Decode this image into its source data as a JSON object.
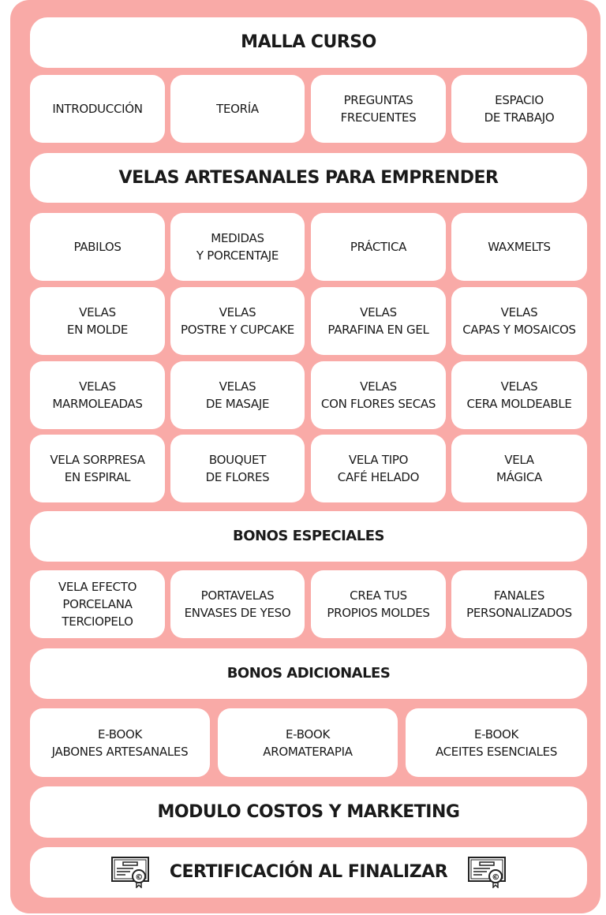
{
  "title": "MALLA CURSO",
  "intro_row": [
    "INTRODUCCIÓN",
    "TEORÍA",
    "PREGUNTAS\nFRECUENTES",
    "ESPACIO\nDE TRABAJO"
  ],
  "course_title": "VELAS ARTESANALES PARA EMPRENDER",
  "course_rows": [
    [
      "PABILOS",
      "MEDIDAS\nY PORCENTAJE",
      "PRÁCTICA",
      "WAXMELTS"
    ],
    [
      "VELAS\nEN MOLDE",
      "VELAS\nPOSTRE Y CUPCAKE",
      "VELAS\nPARAFINA EN GEL",
      "VELAS\nCAPAS Y MOSAICOS"
    ],
    [
      "VELAS\nMARMOLEADAS",
      "VELAS\nDE MASAJE",
      "VELAS\nCON FLORES SECAS",
      "VELAS\nCERA MOLDEABLE"
    ],
    [
      "VELA SORPRESA\nEN ESPIRAL",
      "BOUQUET\nDE FLORES",
      "VELA TIPO\nCAFÉ HELADO",
      "VELA\nMÁGICA"
    ]
  ],
  "special_title": "BONOS ESPECIALES",
  "special_row": [
    "VELA EFECTO\nPORCELANA\nTERCIOPELO",
    "PORTAVELAS\nENVASES DE YESO",
    "CREA TUS\nPROPIOS MOLDES",
    "FANALES\nPERSONALIZADOS"
  ],
  "additional_title": "BONOS ADICIONALES",
  "additional_row": [
    "E-BOOK\nJABONES ARTESANALES",
    "E-BOOK\nAROMATERAPIA",
    "E-BOOK\nACEITES ESENCIALES"
  ],
  "marketing_title": "MODULO COSTOS Y MARKETING",
  "certification_title": "CERTIFICACIÓN AL FINALIZAR",
  "colors": {
    "panel": "#f9aaa7",
    "box": "#ffffff",
    "text": "#1a1a1a"
  },
  "icons": [
    "certificate-icon"
  ]
}
